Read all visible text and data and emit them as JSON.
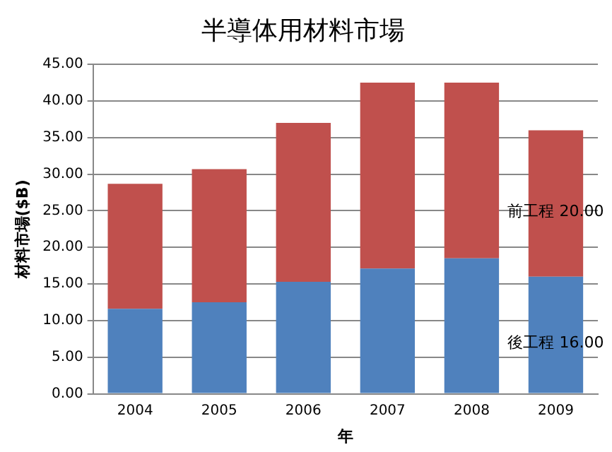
{
  "chart_data": {
    "type": "bar",
    "title": "半導体用材料市場",
    "xlabel": "年",
    "ylabel": "材料市場($B)",
    "categories": [
      "2004",
      "2005",
      "2006",
      "2007",
      "2008",
      "2009"
    ],
    "stacked": true,
    "series": [
      {
        "color": "#4f81bd",
        "values": [
          11.6,
          12.5,
          15.3,
          17.1,
          18.5,
          16
        ],
        "value_labels": [
          null,
          null,
          null,
          null,
          null,
          "後工程 16.00"
        ]
      },
      {
        "color": "#c0504d",
        "values": [
          17.1,
          18.2,
          21.7,
          25.4,
          24.0,
          20
        ],
        "value_labels": [
          null,
          null,
          null,
          null,
          null,
          "前工程 20.00"
        ]
      }
    ],
    "ylim": [
      0,
      45
    ],
    "yticks": [
      {
        "value": 0,
        "label": "0.00"
      },
      {
        "value": 5,
        "label": "5.00"
      },
      {
        "value": 10,
        "label": "10.00"
      },
      {
        "value": 15,
        "label": "15.00"
      },
      {
        "value": 20,
        "label": "20.00"
      },
      {
        "value": 25,
        "label": "25.00"
      },
      {
        "value": 30,
        "label": "30.00"
      },
      {
        "value": 35,
        "label": "35.00"
      },
      {
        "value": 40,
        "label": "40.00"
      },
      {
        "value": 45,
        "label": "45.00"
      }
    ],
    "grid": "y",
    "legend": false
  }
}
